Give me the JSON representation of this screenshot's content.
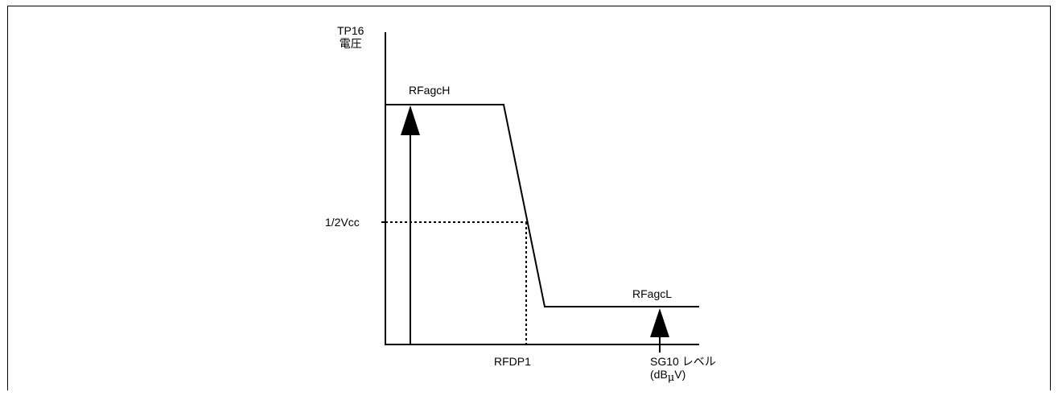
{
  "axes": {
    "y_label_line1": "TP16",
    "y_label_line2": "電圧",
    "x_label_line1": "SG10 レベル",
    "x_label_line2_pre": "(dB",
    "x_label_line2_mu": "μ",
    "x_label_line2_post": "V)"
  },
  "levels": {
    "high": "RFagcH",
    "low": "RFagcL",
    "mid_tick": "1/2Vcc",
    "point": "RFDP1"
  },
  "colors": {
    "line": "#000000",
    "background": "#ffffff"
  }
}
